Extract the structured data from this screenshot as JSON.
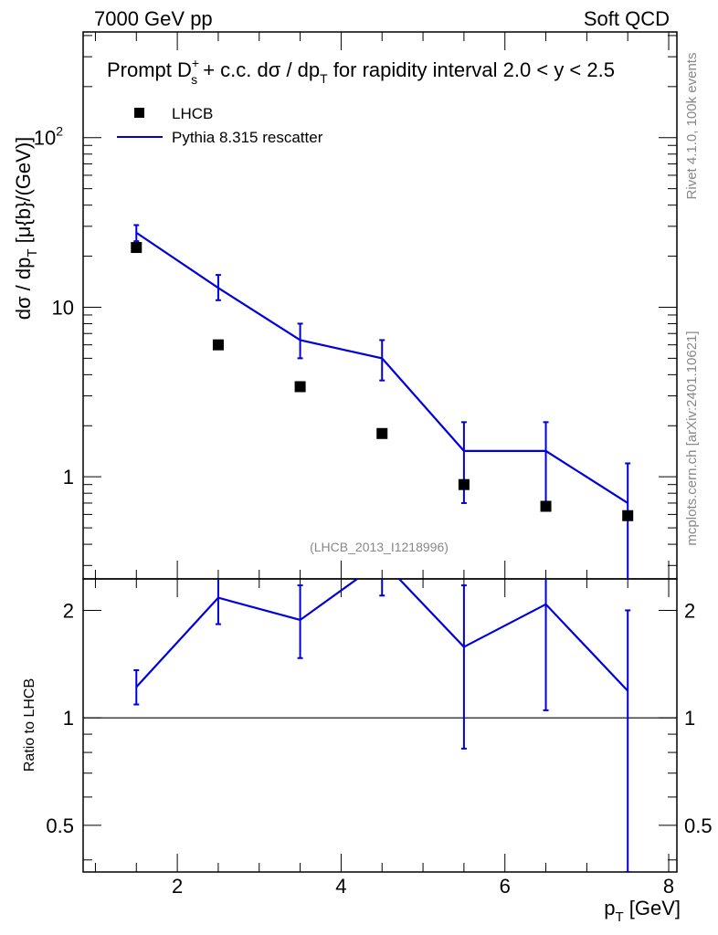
{
  "header": {
    "left": "7000 GeV pp",
    "right": "Soft QCD"
  },
  "side_labels": {
    "rivet": "Rivet 4.1.0,  100k events",
    "mcplots": "mcplots.cern.ch [arXiv:2401.10621]"
  },
  "chart_data": [
    {
      "type": "scatter",
      "panel": "main",
      "title_parts": {
        "prefix": "Prompt D",
        "sup": "+",
        "sub": "s",
        "mid": " + c.c.  dσ / dp",
        "sub2": "T",
        "suffix": " for rapidity interval 2.0 < y < 2.5"
      },
      "ylabel_parts": {
        "main": "dσ / dp",
        "sub": "T",
        "rest": " [μ{b}/(GeV)]"
      },
      "yscale": "log",
      "xlim": [
        0.85,
        8.1
      ],
      "ylim": [
        0.25,
        420
      ],
      "yticks": [
        {
          "value": 1,
          "label": "1"
        },
        {
          "value": 10,
          "label": "10"
        },
        {
          "value": 100,
          "label": "10",
          "sup": "2"
        }
      ],
      "watermark": "(LHCB_2013_I1218996)",
      "legend": [
        {
          "name": "LHCB",
          "marker": "square",
          "color": "#000000"
        },
        {
          "name": "Pythia 8.315 rescatter",
          "marker": "line",
          "color": "#0000dd"
        }
      ],
      "series": [
        {
          "name": "LHCB",
          "color": "#000000",
          "x": [
            1.5,
            2.5,
            3.5,
            4.5,
            5.5,
            6.5,
            7.5
          ],
          "y": [
            22.5,
            6.0,
            3.4,
            1.8,
            0.9,
            0.67,
            0.59
          ]
        },
        {
          "name": "Pythia 8.315 rescatter",
          "color": "#0000dd",
          "x": [
            1.5,
            2.5,
            3.5,
            4.5,
            5.5,
            6.5,
            7.5
          ],
          "y": [
            27.5,
            13.0,
            6.4,
            5.0,
            1.42,
            1.42,
            0.7
          ],
          "err_low": [
            24.5,
            11.0,
            5.0,
            3.7,
            0.7,
            0.7,
            0.22
          ],
          "err_high": [
            30.5,
            15.5,
            8.0,
            6.4,
            2.1,
            2.1,
            1.2
          ]
        }
      ]
    },
    {
      "type": "line",
      "panel": "ratio",
      "ylabel": "Ratio to LHCB",
      "xlabel_parts": {
        "main": "p",
        "sub": "T",
        "rest": " [GeV]"
      },
      "yscale": "log",
      "xlim": [
        0.85,
        8.1
      ],
      "ylim": [
        0.37,
        2.45
      ],
      "xticks": [
        2,
        4,
        6,
        8
      ],
      "yticks": [
        {
          "value": 0.5,
          "label": "0.5"
        },
        {
          "value": 1,
          "label": "1"
        },
        {
          "value": 2,
          "label": "2"
        }
      ],
      "reference_line": 1,
      "series": [
        {
          "name": "Pythia 8.315 rescatter",
          "color": "#0000dd",
          "x": [
            1.5,
            2.5,
            3.5,
            4.5,
            5.5,
            6.5,
            7.5
          ],
          "y": [
            1.22,
            2.17,
            1.88,
            2.75,
            1.58,
            2.08,
            1.19
          ],
          "err_low": [
            1.09,
            1.83,
            1.47,
            2.2,
            0.82,
            1.05,
            0.37
          ],
          "err_high": [
            1.36,
            2.58,
            2.35,
            3.5,
            2.35,
            3.1,
            2.0
          ]
        }
      ]
    }
  ]
}
